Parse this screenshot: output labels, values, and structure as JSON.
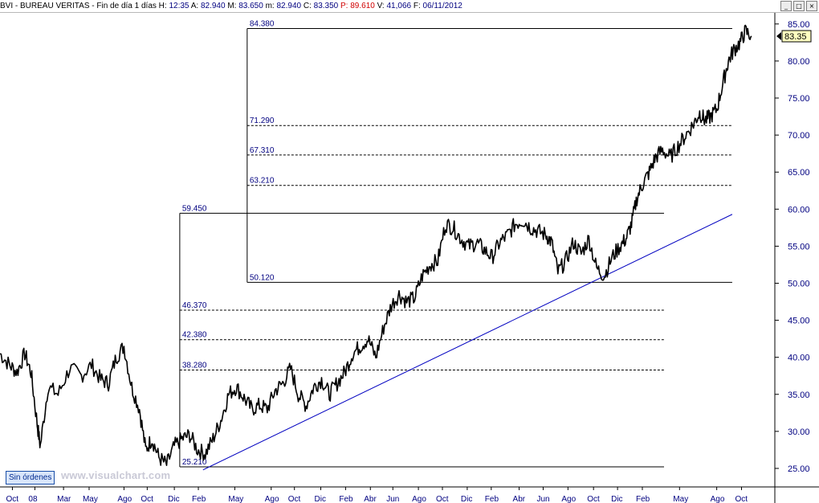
{
  "header": {
    "symbol": "BVI - BUREAU VERITAS - Fin de día 1 días",
    "h_label": "H:",
    "h_value": "12:35",
    "a_label": "A:",
    "a_value": "82.940",
    "m_label": "M:",
    "m_value": "83.650",
    "mm_label": "m:",
    "mm_value": "82.940",
    "c_label": "C:",
    "c_value": "83.350",
    "p_label": "P:",
    "p_value": "89.610",
    "v_label": "V:",
    "v_value": "41,066",
    "f_label": "F:",
    "f_value": "06/11/2012"
  },
  "window_buttons": {
    "minimize": "_",
    "restore": "□",
    "close": "×"
  },
  "watermark": "www.visualchart.com",
  "orders_button": "Sin órdenes",
  "chart_data": {
    "type": "line",
    "title": "BVI - BUREAU VERITAS",
    "ylim": [
      22.5,
      86.5
    ],
    "yticks": [
      "85.00",
      "80.00",
      "75.00",
      "70.00",
      "65.00",
      "60.00",
      "55.00",
      "50.00",
      "45.00",
      "40.00",
      "35.00",
      "30.00",
      "25.00"
    ],
    "ytick_values": [
      85,
      80,
      75,
      70,
      65,
      60,
      55,
      50,
      45,
      40,
      35,
      30,
      25
    ],
    "xlim": [
      0,
      1
    ],
    "xticks": [
      {
        "label": "Oct",
        "x": 0.016
      },
      {
        "label": "08",
        "x": 0.045
      },
      {
        "label": "Mar",
        "x": 0.082
      },
      {
        "label": "May",
        "x": 0.115
      },
      {
        "label": "Ago",
        "x": 0.16
      },
      {
        "label": "Oct",
        "x": 0.19
      },
      {
        "label": "Dic",
        "x": 0.225
      },
      {
        "label": "Feb",
        "x": 0.256
      },
      {
        "label": "May",
        "x": 0.303
      },
      {
        "label": "Ago",
        "x": 0.35
      },
      {
        "label": "Oct",
        "x": 0.38
      },
      {
        "label": "Dic",
        "x": 0.414
      },
      {
        "label": "Feb",
        "x": 0.446
      },
      {
        "label": "Abr",
        "x": 0.478
      },
      {
        "label": "Jun",
        "x": 0.507
      },
      {
        "label": "Ago",
        "x": 0.54
      },
      {
        "label": "Oct",
        "x": 0.571
      },
      {
        "label": "Dic",
        "x": 0.603
      },
      {
        "label": "Feb",
        "x": 0.634
      },
      {
        "label": "Abr",
        "x": 0.67
      },
      {
        "label": "Jun",
        "x": 0.701
      },
      {
        "label": "Ago",
        "x": 0.733
      },
      {
        "label": "Oct",
        "x": 0.766
      },
      {
        "label": "Dic",
        "x": 0.797
      },
      {
        "label": "Feb",
        "x": 0.829
      },
      {
        "label": "May",
        "x": 0.877
      },
      {
        "label": "Ago",
        "x": 0.925
      },
      {
        "label": "Oct",
        "x": 0.957
      }
    ],
    "price_series": {
      "name": "BVI",
      "color": "#000000",
      "x": [
        0.0,
        0.012,
        0.022,
        0.032,
        0.04,
        0.048,
        0.052,
        0.062,
        0.075,
        0.09,
        0.105,
        0.118,
        0.13,
        0.14,
        0.15,
        0.16,
        0.17,
        0.18,
        0.188,
        0.196,
        0.205,
        0.215,
        0.225,
        0.235,
        0.245,
        0.255,
        0.265,
        0.275,
        0.285,
        0.295,
        0.305,
        0.315,
        0.325,
        0.335,
        0.345,
        0.355,
        0.365,
        0.375,
        0.385,
        0.395,
        0.405,
        0.415,
        0.425,
        0.435,
        0.445,
        0.455,
        0.465,
        0.475,
        0.485,
        0.495,
        0.505,
        0.515,
        0.525,
        0.535,
        0.545,
        0.555,
        0.565,
        0.575,
        0.585,
        0.595,
        0.605,
        0.615,
        0.625,
        0.635,
        0.645,
        0.655,
        0.665,
        0.675,
        0.685,
        0.695,
        0.705,
        0.712,
        0.72,
        0.73,
        0.74,
        0.75,
        0.76,
        0.77,
        0.78,
        0.79,
        0.8,
        0.808,
        0.815,
        0.822,
        0.83,
        0.838,
        0.846,
        0.855,
        0.865,
        0.875,
        0.885,
        0.895,
        0.903,
        0.91,
        0.917,
        0.925,
        0.933,
        0.94,
        0.947,
        0.955,
        0.962,
        0.97
      ],
      "y": [
        40.5,
        39.0,
        38.0,
        40.5,
        38.0,
        31.0,
        28.0,
        36.0,
        35.0,
        38.5,
        37.5,
        39.0,
        37.0,
        36.5,
        40.0,
        41.5,
        36.0,
        33.0,
        27.5,
        29.0,
        26.5,
        25.5,
        28.0,
        29.0,
        29.5,
        27.5,
        27.0,
        29.0,
        31.5,
        35.0,
        36.0,
        34.5,
        33.0,
        33.5,
        33.0,
        35.5,
        36.5,
        38.5,
        35.0,
        33.5,
        36.0,
        37.0,
        35.0,
        36.5,
        38.0,
        40.5,
        41.5,
        42.5,
        40.0,
        44.0,
        47.0,
        48.5,
        47.5,
        48.0,
        51.0,
        52.5,
        53.0,
        58.0,
        57.5,
        56.0,
        55.0,
        55.5,
        54.5,
        53.5,
        55.5,
        56.5,
        58.0,
        58.5,
        57.5,
        57.0,
        56.5,
        55.5,
        51.5,
        53.0,
        55.5,
        54.0,
        56.0,
        52.0,
        51.0,
        53.5,
        55.0,
        56.0,
        58.0,
        61.5,
        63.5,
        65.0,
        67.0,
        68.0,
        67.0,
        68.5,
        70.0,
        71.5,
        73.0,
        72.0,
        72.5,
        73.5,
        77.0,
        80.0,
        81.5,
        82.5,
        84.0,
        83.35
      ]
    },
    "trendline": {
      "color": "#0000c0",
      "x": [
        0.262,
        0.945
      ],
      "y": [
        24.8,
        59.3
      ]
    },
    "fib_projection_1": {
      "color": "#000000",
      "x_range": [
        0.232,
        0.857
      ],
      "levels": [
        {
          "label": "59.450",
          "y": 59.45,
          "style": "solid"
        },
        {
          "label": "46.370",
          "y": 46.37,
          "style": "dashed"
        },
        {
          "label": "42.380",
          "y": 42.38,
          "style": "dashed"
        },
        {
          "label": "38.280",
          "y": 38.28,
          "style": "dashed"
        },
        {
          "label": "25.210",
          "y": 25.21,
          "style": "solid"
        }
      ]
    },
    "fib_projection_2": {
      "color": "#000000",
      "x_range": [
        0.319,
        0.945
      ],
      "levels": [
        {
          "label": "84.380",
          "y": 84.38,
          "style": "solid"
        },
        {
          "label": "71.290",
          "y": 71.29,
          "style": "dashed"
        },
        {
          "label": "67.310",
          "y": 67.31,
          "style": "dashed"
        },
        {
          "label": "63.210",
          "y": 63.21,
          "style": "dashed"
        },
        {
          "label": "50.120",
          "y": 50.12,
          "style": "solid"
        }
      ]
    },
    "last_value": {
      "label": "83.35",
      "y": 83.35,
      "box_color": "#ffffc0"
    }
  }
}
